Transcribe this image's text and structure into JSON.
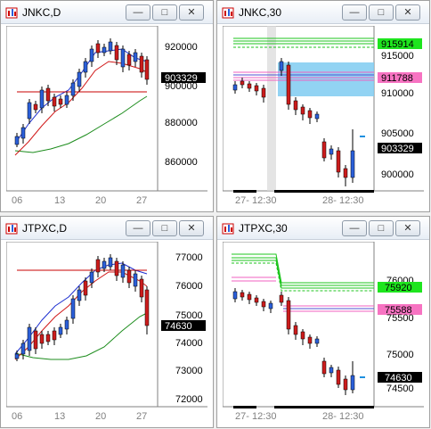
{
  "windows": [
    {
      "title": "JNKC,D",
      "x_labels": [
        "06",
        "13",
        "20",
        "27"
      ],
      "y_labels": [
        "920000",
        "900000",
        "880000",
        "860000"
      ],
      "tags": [
        {
          "text": "903329",
          "type": "black"
        }
      ]
    },
    {
      "title": "JNKC,30",
      "x_labels": [
        "27- 12:30",
        "28- 12:30"
      ],
      "y_labels": [
        "915000",
        "910000",
        "905000",
        "900000"
      ],
      "tags": [
        {
          "text": "915914",
          "type": "green"
        },
        {
          "text": "911788",
          "type": "pink"
        },
        {
          "text": "903329",
          "type": "black"
        }
      ]
    },
    {
      "title": "JTPXC,D",
      "x_labels": [
        "06",
        "13",
        "20",
        "27"
      ],
      "y_labels": [
        "77000",
        "76000",
        "75000",
        "74000",
        "73000",
        "72000"
      ],
      "tags": [
        {
          "text": "74630",
          "type": "black"
        }
      ]
    },
    {
      "title": "JTPXC,30",
      "x_labels": [
        "27- 12:30",
        "28- 12:30"
      ],
      "y_labels": [
        "76000",
        "75500",
        "75000",
        "74500"
      ],
      "tags": [
        {
          "text": "75920",
          "type": "green"
        },
        {
          "text": "75588",
          "type": "pink"
        },
        {
          "text": "74630",
          "type": "black"
        }
      ]
    }
  ],
  "window_buttons": {
    "minimize": "—",
    "maximize": "□",
    "close": "✕"
  },
  "icons": {
    "app": "chart-app-icon",
    "minimize": "minimize-icon",
    "maximize": "maximize-icon",
    "close": "close-icon"
  },
  "colors": {
    "up_candle": "#2b5fd9",
    "down_candle": "#cc1c1c",
    "ma_short": "#1d2fd0",
    "ma_mid": "#d01818",
    "ma_long": "#1c8c1c",
    "resistance": "#c80000",
    "band_green": "#1fc41f",
    "band_pink": "#f060c0",
    "zone": "#7fcbf1",
    "tag_green": "#1ee51e",
    "tag_pink": "#f773c2",
    "tag_black": "#000000"
  }
}
